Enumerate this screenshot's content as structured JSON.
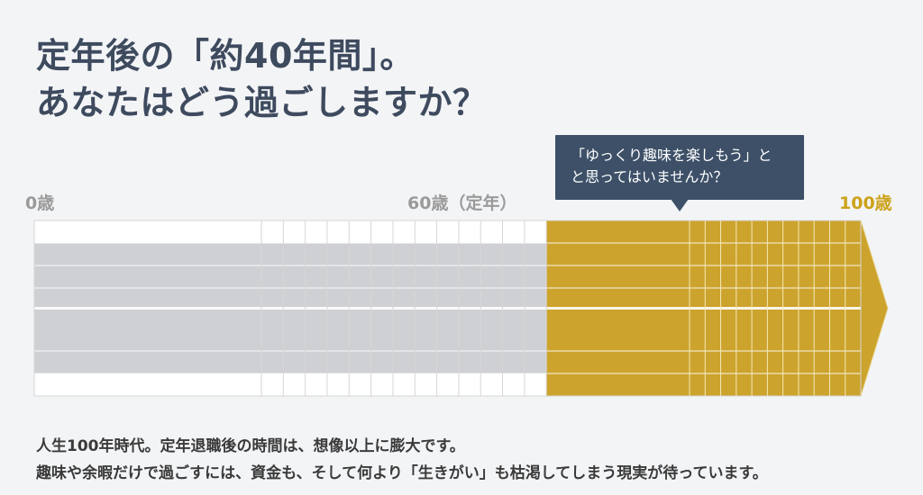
{
  "headline": {
    "line1": "定年後の「約40年間」。",
    "line2": "あなたはどう過ごしますか？"
  },
  "timeline": {
    "start_label": "0歳",
    "retirement_label": "60歳（定年）",
    "end_label": "100歳",
    "start_age": 0,
    "retirement_age": 60,
    "end_age": 100,
    "colors": {
      "working_years": "#cfd0d4",
      "post_retirement_years": "#cca32c",
      "grid": "#d6d6d6"
    }
  },
  "callout": {
    "line1": "「ゆっくり趣味を楽しもう」と",
    "line2": "と思ってはいませんか？"
  },
  "body": {
    "line1": "人生100年時代。定年退職後の時間は、想像以上に膨大です。",
    "line2": "趣味や余暇だけで過ごすには、資金も、そして何より「生きがい」も枯渇してしまう現実が待っています。"
  }
}
